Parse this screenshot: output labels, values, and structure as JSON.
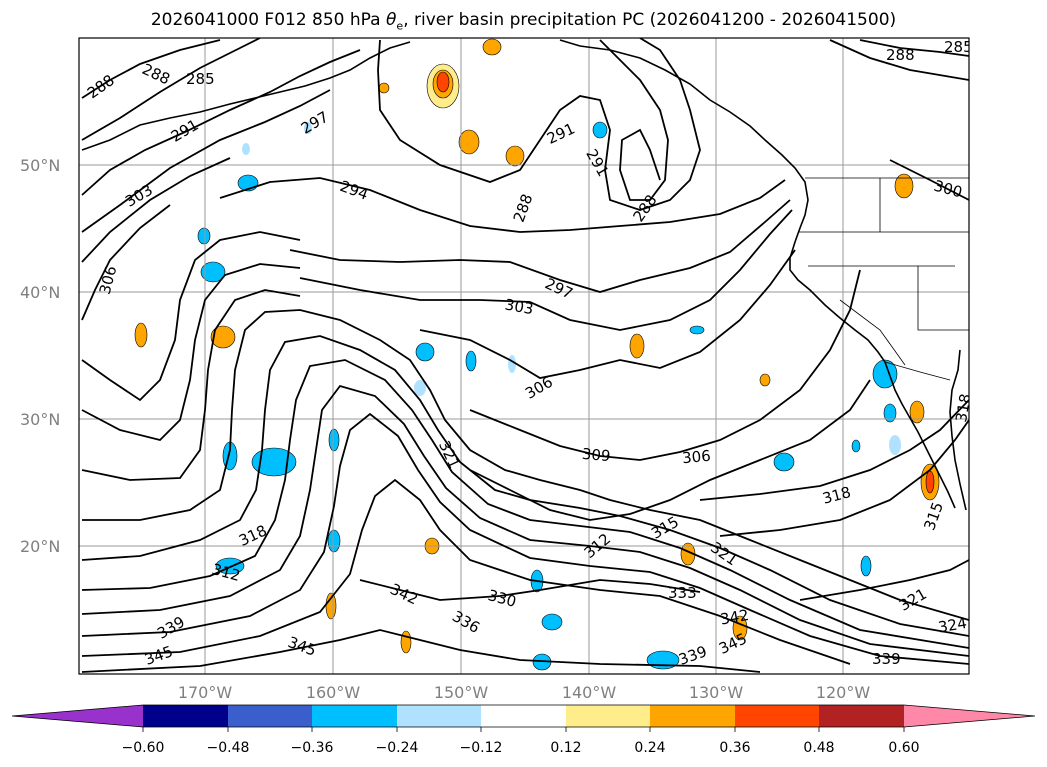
{
  "title_main": "2026041000 F012 850 hPa ",
  "title_theta": "θ",
  "title_sub": "e",
  "title_rest": ", river basin precipitation PC (2026041200 - 2026041500)",
  "lat_labels": [
    "50°N",
    "40°N",
    "30°N",
    "20°N"
  ],
  "lon_labels": [
    "170°W",
    "160°W",
    "150°W",
    "140°W",
    "130°W",
    "120°W"
  ],
  "contour_labels": [
    "288",
    "288",
    "285",
    "288",
    "285",
    "297",
    "291",
    "303",
    "294",
    "291",
    "291",
    "288",
    "288",
    "306",
    "297",
    "303",
    "300",
    "306",
    "318",
    "321",
    "309",
    "306",
    "318",
    "315",
    "318",
    "312",
    "315",
    "312",
    "321",
    "342",
    "330",
    "336",
    "333",
    "339",
    "342",
    "345",
    "345",
    "339",
    "321",
    "324",
    "339",
    "345"
  ],
  "colorbar": {
    "colors": [
      "#9932CC",
      "#00008B",
      "#3A5FCD",
      "#00BFFF",
      "#B0E2FF",
      "#FFFFFF",
      "#FFEC8B",
      "#FFA500",
      "#FF4500",
      "#B22222",
      "#FF88A8"
    ],
    "tick_labels": [
      "−0.60",
      "−0.48",
      "−0.36",
      "−0.24",
      "−0.12",
      "0.12",
      "0.24",
      "0.36",
      "0.48",
      "0.60"
    ]
  }
}
